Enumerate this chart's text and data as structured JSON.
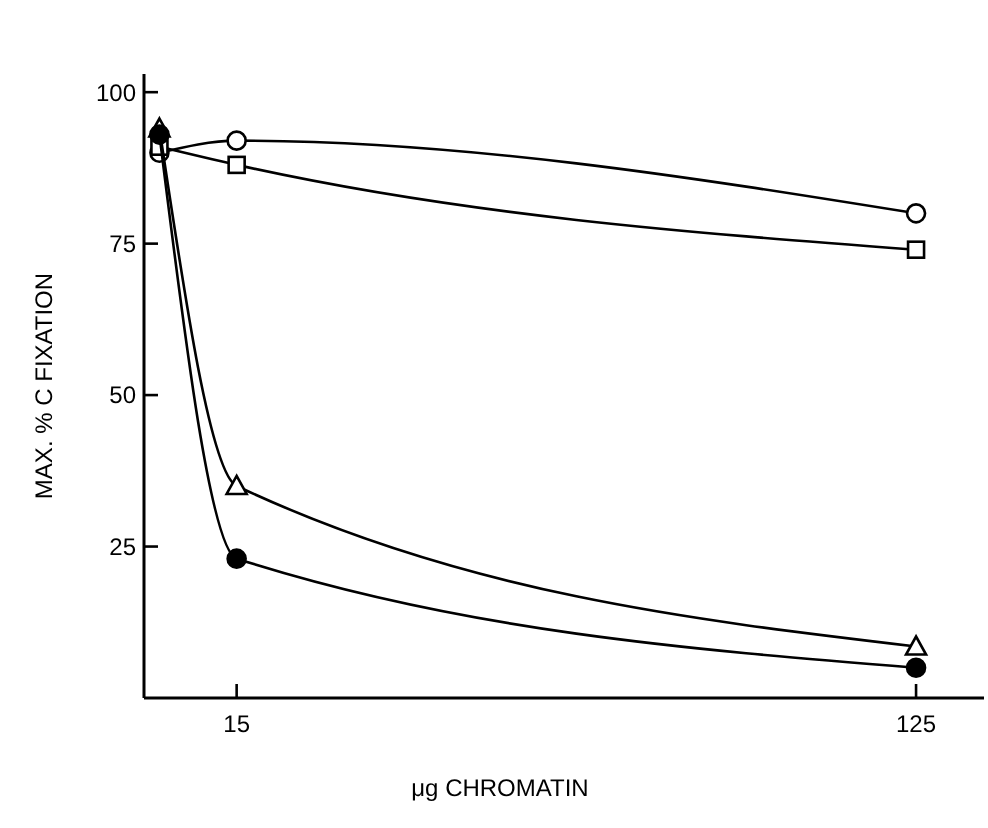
{
  "chart_data": {
    "type": "line",
    "xlabel": "μg CHROMATIN",
    "ylabel": "MAX. % C FIXATION",
    "xlim": [
      0,
      136
    ],
    "ylim": [
      0,
      103
    ],
    "xticks": [
      15,
      125
    ],
    "yticks": [
      25,
      50,
      75,
      100
    ],
    "line_style": "solid",
    "series": [
      {
        "color": "#000000",
        "marker": "circle",
        "x": [
          2.5,
          15,
          125
        ],
        "values": [
          90,
          92,
          80
        ]
      },
      {
        "color": "#000000",
        "marker": "square",
        "x": [
          2.5,
          15,
          125
        ],
        "values": [
          91,
          88,
          74
        ]
      },
      {
        "color": "#000000",
        "marker": "triangle",
        "x": [
          2.5,
          15,
          125
        ],
        "values": [
          94,
          35,
          8.5
        ]
      },
      {
        "color": "#000000",
        "marker": "circle",
        "x": [
          2.5,
          15,
          125
        ],
        "values": [
          93,
          23,
          5
        ]
      }
    ]
  }
}
